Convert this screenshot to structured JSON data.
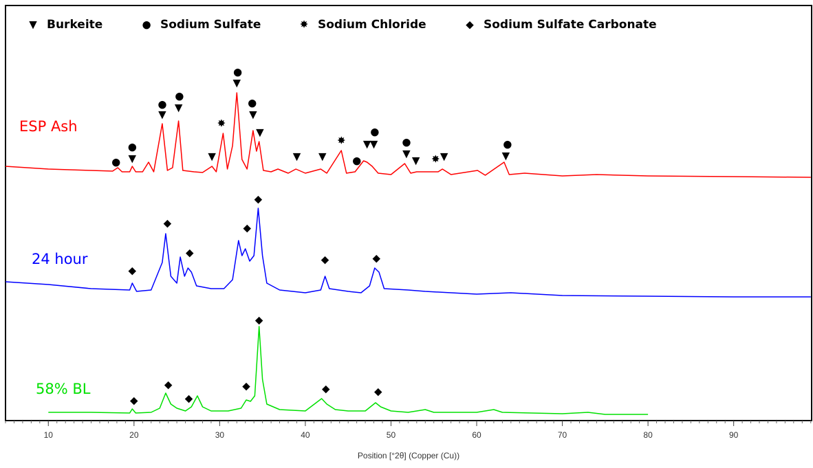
{
  "chart_data": {
    "type": "line",
    "xlabel": "Position [°2θ] (Copper (Cu))",
    "xlim": [
      5,
      99.1
    ],
    "xticks": [
      10,
      20,
      30,
      40,
      50,
      60,
      70,
      80,
      90
    ],
    "minor_xtick_step": 1,
    "ylim": [
      0,
      604
    ],
    "series": [
      {
        "name": "ESP Ash",
        "color": "#ff0000",
        "x": [
          5,
          10,
          15,
          17.5,
          18.1,
          18.6,
          19.5,
          19.8,
          20.2,
          21,
          21.7,
          22.3,
          23.3,
          23.9,
          24.5,
          25.2,
          25.7,
          27,
          28,
          29.1,
          29.6,
          30.4,
          30.9,
          31.5,
          32,
          32.6,
          33.2,
          33.9,
          34.3,
          34.6,
          35.1,
          36,
          36.8,
          38,
          38.9,
          40,
          41.8,
          42.5,
          44.2,
          44.8,
          45.8,
          46.8,
          47.2,
          47.8,
          48.5,
          50,
          51.6,
          52.3,
          53,
          55.5,
          56,
          57,
          60.1,
          61,
          63.2,
          63.8,
          65.6,
          70,
          74,
          80,
          90,
          99
        ],
        "values": [
          370,
          366,
          364,
          363,
          368,
          362,
          362,
          370,
          362,
          362,
          376,
          362,
          432,
          364,
          368,
          436,
          364,
          362,
          361,
          370,
          362,
          418,
          366,
          400,
          477,
          380,
          366,
          422,
          392,
          406,
          364,
          362,
          366,
          360,
          366,
          360,
          366,
          360,
          393,
          360,
          362,
          378,
          376,
          370,
          360,
          358,
          374,
          360,
          362,
          362,
          366,
          358,
          364,
          357,
          376,
          358,
          360,
          356,
          358,
          356,
          355,
          354
        ]
      },
      {
        "name": "24 hour",
        "color": "#0000ff",
        "x": [
          5,
          10,
          15,
          19.5,
          19.8,
          20.3,
          22,
          23.3,
          23.7,
          24.3,
          25,
          25.4,
          25.9,
          26.3,
          26.7,
          27.3,
          29,
          30.5,
          31.5,
          32.2,
          32.6,
          33,
          33.5,
          34,
          34.5,
          35,
          35.5,
          37,
          40,
          41.8,
          42.3,
          42.8,
          45,
          46.5,
          47.5,
          48.1,
          48.6,
          49.2,
          52,
          54,
          60,
          64,
          70,
          80,
          90,
          99
        ],
        "values": [
          202,
          198,
          192,
          190,
          200,
          188,
          190,
          230,
          272,
          210,
          200,
          238,
          210,
          222,
          216,
          196,
          192,
          192,
          205,
          262,
          240,
          250,
          232,
          240,
          309,
          240,
          200,
          190,
          186,
          190,
          210,
          192,
          188,
          186,
          196,
          222,
          216,
          192,
          190,
          188,
          184,
          186,
          182,
          181,
          180,
          180
        ]
      },
      {
        "name": "58% BL",
        "color": "#00e000",
        "x": [
          10,
          15,
          19.5,
          19.8,
          20.2,
          22,
          23,
          23.7,
          24.3,
          25,
          26,
          26.7,
          27.4,
          28,
          29,
          31,
          32.5,
          33.1,
          33.6,
          34.1,
          34.6,
          35,
          35.5,
          37,
          40,
          41.9,
          42.5,
          43.5,
          45,
          47,
          48.2,
          48.8,
          50,
          52,
          54,
          55,
          60,
          62,
          63,
          70,
          73,
          75,
          80
        ],
        "values": [
          12,
          12,
          11,
          17,
          11,
          12,
          18,
          40,
          24,
          18,
          14,
          20,
          36,
          20,
          14,
          14,
          18,
          30,
          28,
          36,
          137,
          60,
          24,
          16,
          14,
          32,
          24,
          16,
          14,
          14,
          26,
          20,
          14,
          12,
          16,
          12,
          12,
          16,
          12,
          10,
          12,
          9,
          9
        ]
      }
    ],
    "markers": [
      {
        "name": "Burkeite",
        "symbol": "▼",
        "x": [
          19.8,
          23.3,
          25.2,
          29.1,
          32,
          33.9,
          34.7,
          39,
          42,
          47.2,
          48,
          51.8,
          52.9,
          56.2,
          63.4
        ],
        "values": [
          381,
          445,
          455,
          384,
          491,
          445,
          419,
          384,
          384,
          402,
          402,
          388,
          378,
          384,
          385
        ]
      },
      {
        "name": "Sodium Sulfate",
        "symbol": "●",
        "x": [
          17.9,
          19.8,
          23.3,
          25.3,
          32.1,
          33.8,
          46,
          48.1,
          51.8,
          63.6
        ],
        "values": [
          376,
          398,
          460,
          472,
          507,
          462,
          378,
          420,
          405,
          402
        ]
      },
      {
        "name": "Sodium Chloride",
        "symbol": "✸",
        "x": [
          30.2,
          44.2,
          55.2
        ],
        "values": [
          432,
          407,
          380
        ]
      },
      {
        "name": "Sodium Sulfate Carbonate",
        "symbol": "◆",
        "x": [
          19.8,
          23.9,
          26.5,
          33.2,
          34.5,
          42.3,
          48.3,
          20,
          24,
          26.4,
          33.1,
          34.6,
          42.4,
          48.5
        ],
        "values": [
          218,
          287,
          244,
          280,
          322,
          234,
          236,
          29,
          52,
          32,
          50,
          146,
          46,
          42
        ]
      }
    ]
  }
}
